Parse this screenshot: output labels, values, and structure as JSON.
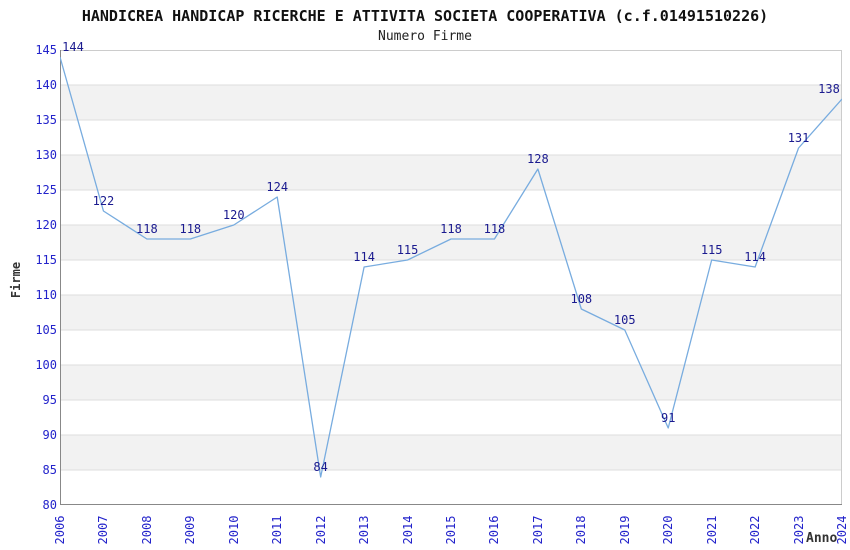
{
  "header": {
    "title": "HANDICREA HANDICAP RICERCHE E ATTIVITA SOCIETA COOPERATIVA (c.f.01491510226)",
    "subtitle": "Numero Firme"
  },
  "chart_data": {
    "type": "line",
    "title": "HANDICREA HANDICAP RICERCHE E ATTIVITA SOCIETA COOPERATIVA (c.f.01491510226)",
    "subtitle": "Numero Firme",
    "xlabel": "Anno",
    "ylabel": "Firme",
    "categories": [
      "2006",
      "2007",
      "2008",
      "2009",
      "2010",
      "2011",
      "2012",
      "2013",
      "2014",
      "2015",
      "2016",
      "2017",
      "2018",
      "2019",
      "2020",
      "2021",
      "2022",
      "2023",
      "2024"
    ],
    "values": [
      144,
      122,
      118,
      118,
      120,
      124,
      84,
      114,
      115,
      118,
      118,
      128,
      108,
      105,
      91,
      115,
      114,
      131,
      138
    ],
    "series": [
      {
        "name": "Numero Firme",
        "values": [
          144,
          122,
          118,
          118,
          120,
          124,
          84,
          114,
          115,
          118,
          118,
          128,
          108,
          105,
          91,
          115,
          114,
          131,
          138
        ]
      }
    ],
    "ylim": [
      80,
      145
    ],
    "yticks": [
      145,
      140,
      135,
      130,
      125,
      120,
      115,
      110,
      105,
      100,
      95,
      90,
      85,
      80
    ],
    "grid": "horizontal gridlines with alternating background bands",
    "legend_position": "none",
    "point_labels_visible": true,
    "colors": {
      "line": "#78ACDF",
      "point_label": "#1A1A8F",
      "tick_label": "#2323CB",
      "band": "#F2F2F2",
      "band_alt": "#FFFFFF",
      "gridline": "#DEDEDE",
      "plot_border": "#CCCCCC",
      "axis_line": "#888888",
      "background": "#FFFFFF"
    }
  }
}
